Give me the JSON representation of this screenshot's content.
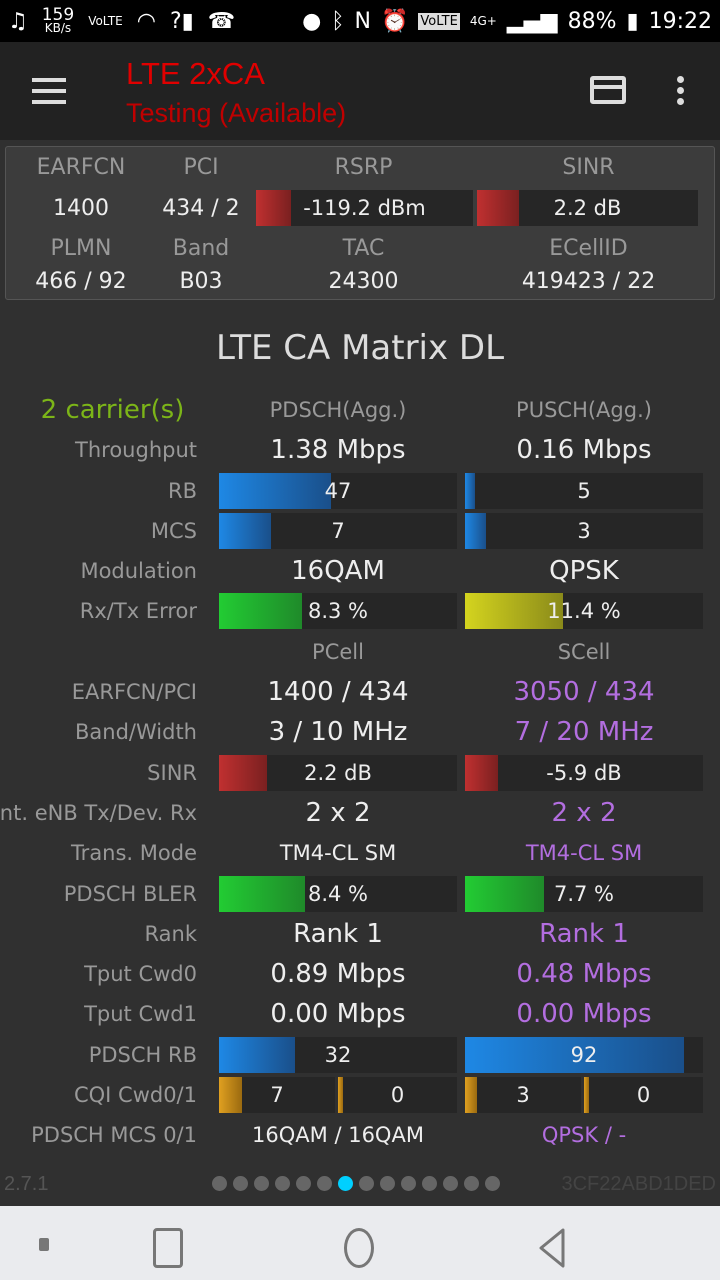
{
  "status_bar": {
    "speed": "159",
    "speed_unit": "KB/s",
    "volte_small": "VoLTE",
    "signal": "?",
    "battery": "88%",
    "time": "19:22",
    "volte": "VoLTE",
    "net": "4G+"
  },
  "app_bar": {
    "title": "LTE 2xCA",
    "subtitle": "Testing (Available)",
    "title_color": "#e00000"
  },
  "summary": {
    "labels": [
      "EARFCN",
      "PCI",
      "RSRP",
      "SINR",
      "PLMN",
      "Band",
      "TAC",
      "ECellID"
    ],
    "earfcn": "1400",
    "pci": "434 / 2",
    "rsrp": "-119.2 dBm",
    "rsrp_level": 0.16,
    "sinr": "2.2 dB",
    "sinr_level": 0.19,
    "plmn": "466 / 92",
    "band": "B03",
    "tac": "24300",
    "ecellid": "419423 / 22"
  },
  "matrix": {
    "title": "LTE CA Matrix DL",
    "carriers": "2 carrier(s)",
    "col1": "PDSCH(Agg.)",
    "col2": "PUSCH(Agg.)",
    "rows": [
      {
        "label": "Throughput",
        "a": "1.38 Mbps",
        "b": "0.16 Mbps"
      },
      {
        "label": "RB",
        "a": "47",
        "af": 0.47,
        "b": "5",
        "bf": 0.04,
        "bar": "blue"
      },
      {
        "label": "MCS",
        "a": "7",
        "af": 0.22,
        "b": "3",
        "bf": 0.09,
        "bar": "blue"
      },
      {
        "label": "Modulation",
        "a": "16QAM",
        "b": "QPSK"
      },
      {
        "label": "Rx/Tx Error",
        "a": "8.3 %",
        "af": 0.35,
        "b": "11.4 %",
        "bf": 0.41,
        "bar": "green",
        "bbar": "yellow"
      },
      {
        "label": "",
        "a": "PCell",
        "b": "SCell",
        "hdr": true
      },
      {
        "label": "EARFCN/PCI",
        "a": "1400 / 434",
        "b": "3050 / 434"
      },
      {
        "label": "Band/Width",
        "a": "3 / 10 MHz",
        "b": "7 / 20 MHz"
      },
      {
        "label": "SINR",
        "a": "2.2 dB",
        "af": 0.2,
        "b": "-5.9 dB",
        "bf": 0.14,
        "bar": "red"
      },
      {
        "label": "Ant. eNB Tx/Dev. Rx",
        "a": "2 x 2",
        "b": "2 x 2"
      },
      {
        "label": "Trans. Mode",
        "a": "TM4-CL SM",
        "b": "TM4-CL SM",
        "small": true
      },
      {
        "label": "PDSCH BLER",
        "a": "8.4 %",
        "af": 0.36,
        "b": "7.7 %",
        "bf": 0.33,
        "bar": "green"
      },
      {
        "label": "Rank",
        "a": "Rank 1",
        "b": "Rank 1"
      },
      {
        "label": "Tput Cwd0",
        "a": "0.89 Mbps",
        "b": "0.48 Mbps"
      },
      {
        "label": "Tput Cwd1",
        "a": "0.00 Mbps",
        "b": "0.00 Mbps"
      },
      {
        "label": "PDSCH RB",
        "a": "32",
        "af": 0.32,
        "b": "92",
        "bf": 0.92,
        "bar": "blue"
      },
      {
        "label": "CQI Cwd0/1",
        "cqi": true,
        "a": [
          "7",
          "0"
        ],
        "af": [
          0.2,
          0.04
        ],
        "b": [
          "3",
          "0"
        ],
        "bf": [
          0.1,
          0.04
        ]
      },
      {
        "label": "PDSCH MCS 0/1",
        "a": "16QAM / 16QAM",
        "b": "QPSK / -",
        "small": true
      }
    ]
  },
  "colors": {
    "pcell": "#eeeeee",
    "scell": "#b36ee0",
    "carriers": "#7cb518",
    "blue": "#1e88e5",
    "green": "#22cc33",
    "yellow": "#d4d41e",
    "red": "#c03030",
    "orange": "#e0a020",
    "active_dot": "#00d0ff"
  },
  "footer": {
    "version": "2.7.1",
    "device_id": "3CF22ABD1DED",
    "page_count": 14,
    "active_page": 7
  },
  "nav_icons": [
    "recent-square-icon",
    "home-circle-icon",
    "back-triangle-icon"
  ]
}
